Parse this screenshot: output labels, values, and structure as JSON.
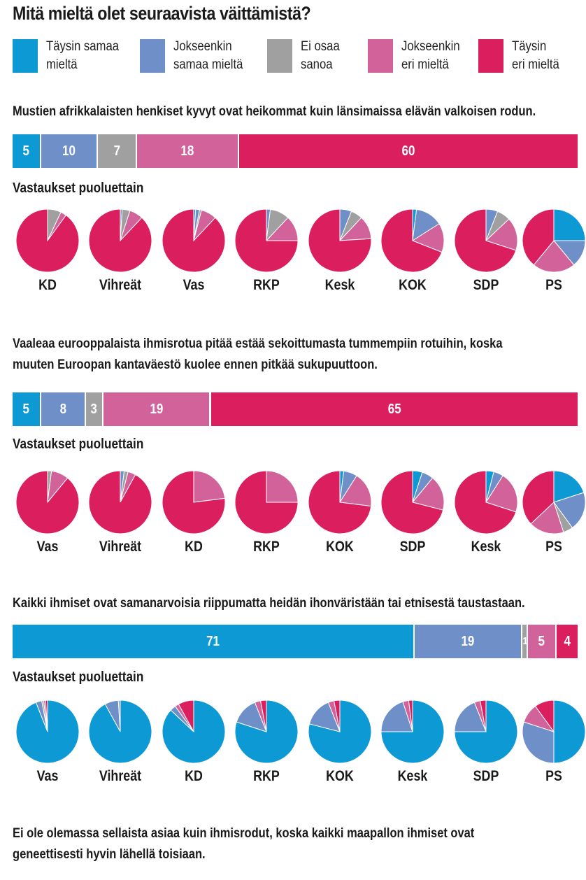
{
  "title": "Mitä mieltä olet seuraavista väittämistä?",
  "legend": [
    {
      "label_line1": "Täysin samaa",
      "label_line2": "mieltä",
      "color": "#0c99d4"
    },
    {
      "label_line1": "Jokseenkin",
      "label_line2": "samaa mieltä",
      "color": "#6f8fc8"
    },
    {
      "label_line1": "Ei osaa",
      "label_line2": "sanoa",
      "color": "#a0a0a0"
    },
    {
      "label_line1": "Jokseenkin",
      "label_line2": "eri mieltä",
      "color": "#d2629a"
    },
    {
      "label_line1": "Täysin",
      "label_line2": "eri mieltä",
      "color": "#db1f5e"
    }
  ],
  "sections": [
    {
      "question_lines": [
        "Mustien afrikkalaisten henkiset kyvyt ovat heikommat kuin länsimaissa elävän valkoisen rodun."
      ],
      "subtitle": "Vastaukset puoluettain"
    },
    {
      "question_lines": [
        "Vaaleaa eurooppalaista ihmisrotua pitää estää sekoittumasta tummempiin rotuihin, koska",
        "muuten Euroopan kantaväestö kuolee ennen pitkää sukupuuttoon."
      ],
      "subtitle": "Vastaukset puoluettain"
    },
    {
      "question_lines": [
        "Kaikki ihmiset ovat samanarvoisia riippumatta heidän ihonväristään tai etnisestä taustastaan."
      ],
      "subtitle": "Vastaukset puoluettain"
    },
    {
      "question_lines": [
        "Ei ole olemassa sellaista asiaa kuin ihmisrodut, koska kaikki maapallon ihmiset ovat",
        "geneettisesti hyvin lähellä toisiaan."
      ],
      "subtitle": ""
    }
  ],
  "chart_data": [
    {
      "type": "bar",
      "orientation": "horizontal-stacked",
      "categories": [
        "Täysin samaa mieltä",
        "Jokseenkin samaa mieltä",
        "Ei osaa sanoa",
        "Jokseenkin eri mieltä",
        "Täysin eri mieltä"
      ],
      "values": [
        5,
        10,
        7,
        18,
        60
      ],
      "labels": [
        "5",
        "10",
        "7",
        "18",
        "60"
      ]
    },
    {
      "type": "pie",
      "categories": [
        "Täysin samaa mieltä",
        "Jokseenkin samaa mieltä",
        "Ei osaa sanoa",
        "Jokseenkin eri mieltä",
        "Täysin eri mieltä"
      ],
      "pies": [
        {
          "party": "KD",
          "values": [
            0,
            0,
            7,
            3,
            90
          ]
        },
        {
          "party": "Vihreät",
          "values": [
            0,
            1,
            4,
            7,
            88
          ]
        },
        {
          "party": "Vas",
          "values": [
            1,
            2,
            1,
            8,
            88
          ]
        },
        {
          "party": "RKP",
          "values": [
            0,
            2,
            10,
            13,
            75
          ]
        },
        {
          "party": "Kesk",
          "values": [
            0,
            6,
            6,
            12,
            76
          ]
        },
        {
          "party": "KOK",
          "values": [
            2,
            14,
            0,
            15,
            69
          ]
        },
        {
          "party": "SDP",
          "values": [
            0,
            6,
            7,
            17,
            70
          ]
        },
        {
          "party": "PS",
          "values": [
            25,
            14,
            0,
            22,
            39
          ]
        }
      ]
    },
    {
      "type": "bar",
      "orientation": "horizontal-stacked",
      "categories": [
        "Täysin samaa mieltä",
        "Jokseenkin samaa mieltä",
        "Ei osaa sanoa",
        "Jokseenkin eri mieltä",
        "Täysin eri mieltä"
      ],
      "values": [
        5,
        8,
        3,
        19,
        65
      ],
      "labels": [
        "5",
        "8",
        "3",
        "19",
        "65"
      ]
    },
    {
      "type": "pie",
      "categories": [
        "Täysin samaa mieltä",
        "Jokseenkin samaa mieltä",
        "Ei osaa sanoa",
        "Jokseenkin eri mieltä",
        "Täysin eri mieltä"
      ],
      "pies": [
        {
          "party": "Vas",
          "values": [
            0,
            0,
            2,
            9,
            89
          ]
        },
        {
          "party": "Vihreät",
          "values": [
            0,
            2,
            2,
            4,
            92
          ]
        },
        {
          "party": "KD",
          "values": [
            0,
            0,
            0,
            23,
            77
          ]
        },
        {
          "party": "RKP",
          "values": [
            0,
            0,
            0,
            25,
            75
          ]
        },
        {
          "party": "KOK",
          "values": [
            2,
            7,
            0,
            18,
            73
          ]
        },
        {
          "party": "SDP",
          "values": [
            5,
            6,
            0,
            18,
            71
          ]
        },
        {
          "party": "Kesk",
          "values": [
            4,
            5,
            0,
            21,
            70
          ]
        },
        {
          "party": "PS",
          "values": [
            20,
            20,
            5,
            18,
            37
          ]
        }
      ]
    },
    {
      "type": "bar",
      "orientation": "horizontal-stacked",
      "categories": [
        "Täysin samaa mieltä",
        "Jokseenkin samaa mieltä",
        "Ei osaa sanoa",
        "Jokseenkin eri mieltä",
        "Täysin eri mieltä"
      ],
      "values": [
        71,
        19,
        1,
        5,
        4
      ],
      "labels": [
        "71",
        "19",
        "1",
        "5",
        "4"
      ]
    },
    {
      "type": "pie",
      "categories": [
        "Täysin samaa mieltä",
        "Jokseenkin samaa mieltä",
        "Ei osaa sanoa",
        "Jokseenkin eri mieltä",
        "Täysin eri mieltä"
      ],
      "pies": [
        {
          "party": "Vas",
          "values": [
            94,
            3,
            1,
            1,
            1
          ]
        },
        {
          "party": "Vihreät",
          "values": [
            92,
            7,
            1,
            0,
            0
          ]
        },
        {
          "party": "KD",
          "values": [
            87,
            3,
            0,
            2,
            8
          ]
        },
        {
          "party": "RKP",
          "values": [
            80,
            14,
            0,
            3,
            3
          ]
        },
        {
          "party": "KOK",
          "values": [
            79,
            15,
            0,
            3,
            3
          ]
        },
        {
          "party": "Kesk",
          "values": [
            75,
            20,
            0,
            3,
            2
          ]
        },
        {
          "party": "SDP",
          "values": [
            75,
            19,
            0,
            3,
            3
          ]
        },
        {
          "party": "PS",
          "values": [
            50,
            30,
            0,
            10,
            10
          ]
        }
      ]
    }
  ]
}
